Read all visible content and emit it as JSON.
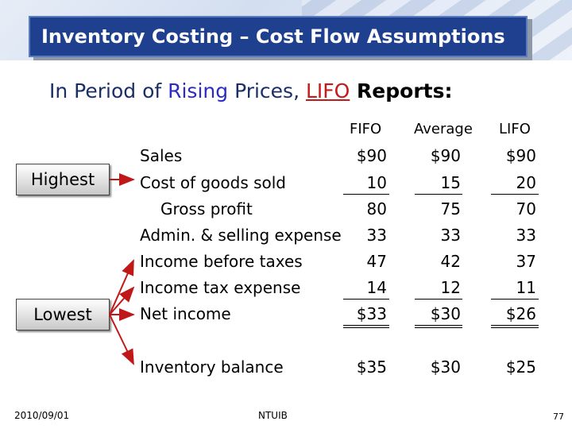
{
  "title": "Inventory Costing – Cost Flow Assumptions",
  "subtitle": {
    "part1": "In Period of ",
    "rising": "Rising",
    "part2": " Prices, ",
    "lifo": "LIFO",
    "reports": " Reports:"
  },
  "side": {
    "highest": "Highest",
    "lowest": "Lowest"
  },
  "columns": [
    "FIFO",
    "Average",
    "LIFO"
  ],
  "rows": [
    {
      "label": "Sales",
      "values": [
        "$90",
        "$90",
        "$90"
      ]
    },
    {
      "label": "Cost of goods sold",
      "values": [
        "10",
        "15",
        "20"
      ]
    },
    {
      "label": "Gross profit",
      "values": [
        "80",
        "75",
        "70"
      ]
    },
    {
      "label": "Admin. & selling expense",
      "values": [
        "33",
        "33",
        "33"
      ]
    },
    {
      "label": "Income before taxes",
      "values": [
        "47",
        "42",
        "37"
      ]
    },
    {
      "label": "Income tax expense",
      "values": [
        "14",
        "12",
        "11"
      ]
    },
    {
      "label": "Net income",
      "values": [
        "$33",
        "$30",
        "$26"
      ]
    },
    {
      "label": "Inventory balance",
      "values": [
        "$35",
        "$30",
        "$25"
      ]
    }
  ],
  "footer": {
    "date": "2010/09/01",
    "center": "NTUIB",
    "page": "77"
  }
}
